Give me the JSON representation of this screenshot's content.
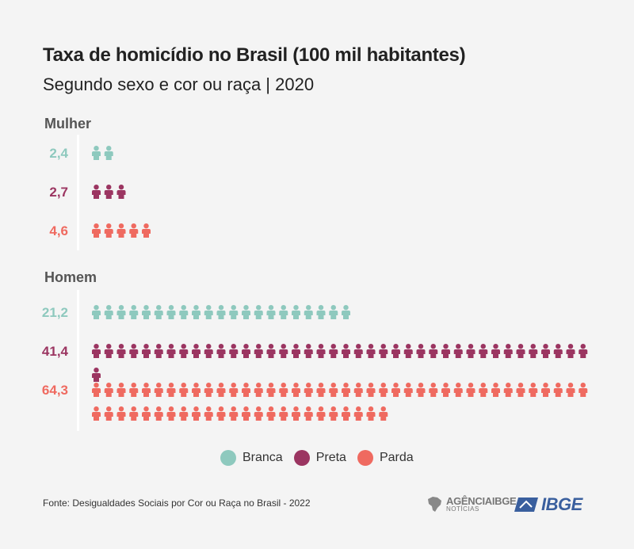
{
  "title": "Taxa de homicídio no Brasil (100 mil habitantes)",
  "subtitle": "Segundo sexo e cor ou raça | 2020",
  "colors": {
    "branca": "#8ec9be",
    "preta": "#9b3561",
    "parda": "#ef6a60"
  },
  "icon": "person-icon",
  "chart_data": {
    "type": "pictogram",
    "unit_per_icon": 1,
    "groups": [
      {
        "name": "Mulher",
        "values": [
          {
            "category": "Branca",
            "value": 2.4,
            "label": "2,4"
          },
          {
            "category": "Preta",
            "value": 2.7,
            "label": "2,7"
          },
          {
            "category": "Parda",
            "value": 4.6,
            "label": "4,6"
          }
        ]
      },
      {
        "name": "Homem",
        "values": [
          {
            "category": "Branca",
            "value": 21.2,
            "label": "21,2"
          },
          {
            "category": "Preta",
            "value": 41.4,
            "label": "41,4"
          },
          {
            "category": "Parda",
            "value": 64.3,
            "label": "64,3"
          }
        ]
      }
    ],
    "legend": [
      "Branca",
      "Preta",
      "Parda"
    ],
    "legend_position": "bottom"
  },
  "footnote": "Fonte: Desigualdades Sociais por Cor ou Raça no Brasil - 2022",
  "logos": {
    "agencia_main": "AGÊNCIAIBGE",
    "agencia_sub": "NOTÍCIAS",
    "ibge": "IBGE"
  }
}
